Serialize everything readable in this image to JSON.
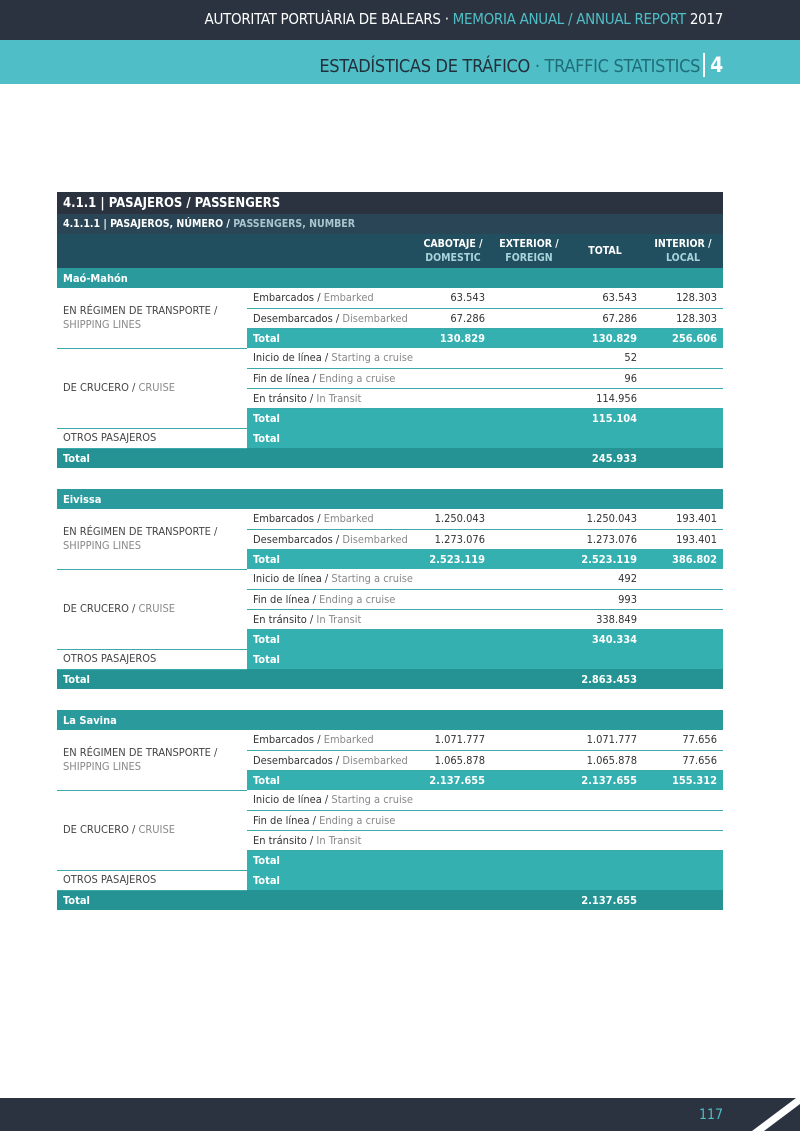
{
  "header": {
    "org": "AUTORITAT PORTUÀRIA DE BALEARS",
    "sep": " · ",
    "report_es": "MEMORIA ANUAL",
    "slash": " / ",
    "report_en": "ANNUAL REPORT",
    "year": "2017"
  },
  "band": {
    "title_es": "ESTADÍSTICAS DE TRÁFICO",
    "sep": " · ",
    "title_en": "TRAFFIC STATISTICS",
    "chapter": "4"
  },
  "table": {
    "title": "4.1.1 | PASAJEROS / PASSENGERS",
    "subtitle_es": "4.1.1.1 | PASAJEROS, NÚMERO / ",
    "subtitle_en": "PASSENGERS, NUMBER",
    "columns": [
      {
        "es": "CABOTAJE /",
        "en": "DOMESTIC"
      },
      {
        "es": "EXTERIOR /",
        "en": "FOREIGN"
      },
      {
        "es": "TOTAL",
        "en": ""
      },
      {
        "es": "INTERIOR /",
        "en": "LOCAL"
      }
    ],
    "labels": {
      "shipping_es": "EN RÉGIMEN DE TRANSPORTE /",
      "shipping_en": "SHIPPING LINES",
      "cruise_es": "DE CRUCERO / ",
      "cruise_en": "CRUISE",
      "other": "OTROS PASAJEROS",
      "total": "Total",
      "embarked_es": "Embarcados / ",
      "embarked_en": "Embarked",
      "disembarked_es": "Desembarcados / ",
      "disembarked_en": "Disembarked",
      "start_es": "Inicio de línea / ",
      "start_en": "Starting a cruise",
      "end_es": "Fin de línea / ",
      "end_en": "Ending a cruise",
      "transit_es": "En tránsito / ",
      "transit_en": "In Transit"
    },
    "ports": [
      {
        "name": "Maó-Mahón",
        "embarked": [
          "63.543",
          "",
          "63.543",
          "128.303"
        ],
        "disembarked": [
          "67.286",
          "",
          "67.286",
          "128.303"
        ],
        "shipping_total": [
          "130.829",
          "",
          "130.829",
          "256.606"
        ],
        "start": [
          "",
          "",
          "52",
          ""
        ],
        "end": [
          "",
          "",
          "96",
          ""
        ],
        "transit": [
          "",
          "",
          "114.956",
          ""
        ],
        "cruise_total": [
          "",
          "",
          "115.104",
          ""
        ],
        "other_total": [
          "",
          "",
          "",
          ""
        ],
        "grand_total": [
          "",
          "",
          "245.933",
          ""
        ]
      },
      {
        "name": "Eivissa",
        "embarked": [
          "1.250.043",
          "",
          "1.250.043",
          "193.401"
        ],
        "disembarked": [
          "1.273.076",
          "",
          "1.273.076",
          "193.401"
        ],
        "shipping_total": [
          "2.523.119",
          "",
          "2.523.119",
          "386.802"
        ],
        "start": [
          "",
          "",
          "492",
          ""
        ],
        "end": [
          "",
          "",
          "993",
          ""
        ],
        "transit": [
          "",
          "",
          "338.849",
          ""
        ],
        "cruise_total": [
          "",
          "",
          "340.334",
          ""
        ],
        "other_total": [
          "",
          "",
          "",
          ""
        ],
        "grand_total": [
          "",
          "",
          "2.863.453",
          ""
        ]
      },
      {
        "name": "La Savina",
        "embarked": [
          "1.071.777",
          "",
          "1.071.777",
          "77.656"
        ],
        "disembarked": [
          "1.065.878",
          "",
          "1.065.878",
          "77.656"
        ],
        "shipping_total": [
          "2.137.655",
          "",
          "2.137.655",
          "155.312"
        ],
        "start": [
          "",
          "",
          "",
          ""
        ],
        "end": [
          "",
          "",
          "",
          ""
        ],
        "transit": [
          "",
          "",
          "",
          ""
        ],
        "cruise_total": [
          "",
          "",
          "",
          ""
        ],
        "other_total": [
          "",
          "",
          "",
          ""
        ],
        "grand_total": [
          "",
          "",
          "2.137.655",
          ""
        ]
      }
    ]
  },
  "footer": {
    "page": "117"
  },
  "colors": {
    "navy": "#2b3340",
    "teal": "#4fbec6",
    "section": "#2a9a9c",
    "total_row": "#35b0b0",
    "grand_total": "#259393"
  }
}
